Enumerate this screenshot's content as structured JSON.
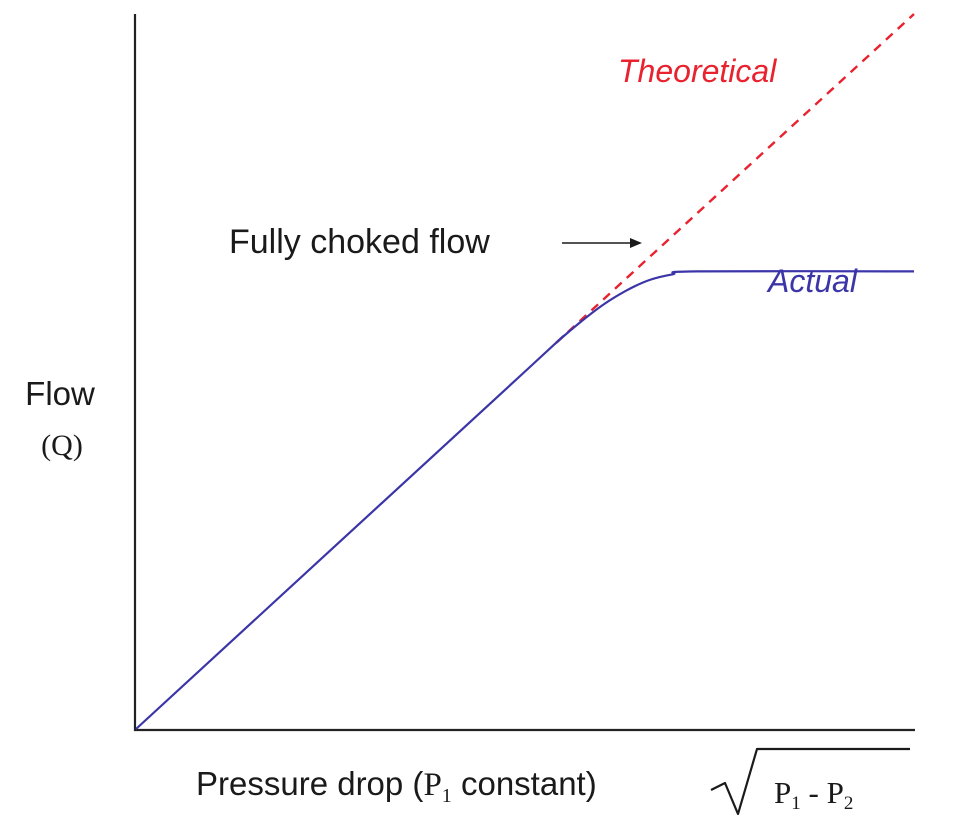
{
  "chart_data": {
    "type": "line",
    "title": "",
    "ylabel": "Flow",
    "ylabel_unit": "(Q)",
    "xlabel": {
      "text": "Pressure drop (",
      "p1": "P",
      "p1_sub": "1",
      "rest": " constant)",
      "sqrt": {
        "a": "P",
        "a_sub": "1",
        "op": " - ",
        "b": "P",
        "b_sub": "2"
      }
    },
    "xlim": [
      0,
      1
    ],
    "ylim": [
      0,
      1
    ],
    "grid": false,
    "series": [
      {
        "name": "Theoretical",
        "style": "dashed",
        "color": "#e8222f",
        "points": [
          [
            0.54,
            0.54
          ],
          [
            1.0,
            1.0
          ]
        ]
      },
      {
        "name": "Actual",
        "style": "solid",
        "color": "#3b35a8",
        "points": [
          [
            0.0,
            0.0
          ],
          [
            0.5,
            0.5
          ],
          [
            0.54,
            0.54
          ],
          [
            0.57,
            0.568
          ],
          [
            0.6,
            0.593
          ],
          [
            0.63,
            0.613
          ],
          [
            0.66,
            0.628
          ],
          [
            0.69,
            0.636
          ],
          [
            0.72,
            0.64
          ],
          [
            1.0,
            0.64
          ]
        ]
      }
    ],
    "annotations": [
      {
        "text": "Fully choked flow",
        "arrow": true,
        "color": "#1a1a1a"
      },
      {
        "text": "Theoretical",
        "color": "#e8222f"
      },
      {
        "text": "Actual",
        "color": "#3b35a8"
      }
    ]
  }
}
